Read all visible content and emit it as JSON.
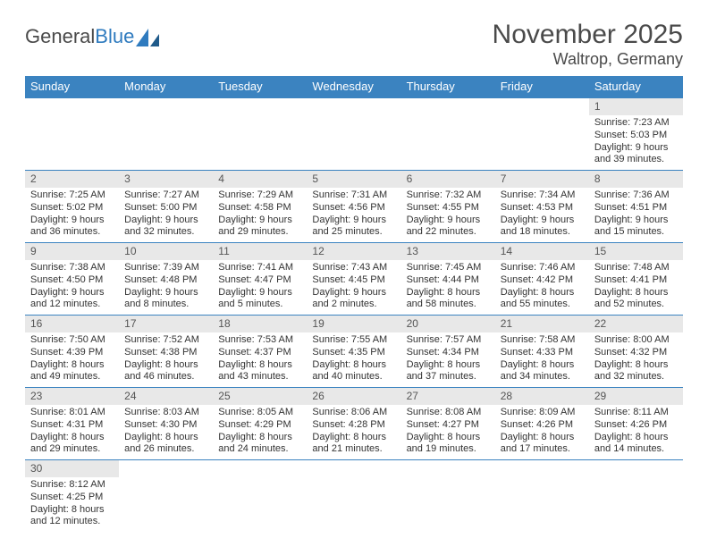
{
  "brand": {
    "part1": "General",
    "part2": "Blue"
  },
  "title": "November 2025",
  "location": "Waltrop, Germany",
  "colors": {
    "header_bg": "#3b83c0",
    "header_fg": "#ffffff",
    "daynum_bg": "#e8e8e8",
    "rule": "#3b83c0",
    "text": "#333333",
    "title_text": "#4a4a4a"
  },
  "day_labels": [
    "Sunday",
    "Monday",
    "Tuesday",
    "Wednesday",
    "Thursday",
    "Friday",
    "Saturday"
  ],
  "weeks": [
    [
      {
        "n": "",
        "sr": "",
        "ss": "",
        "dl": ""
      },
      {
        "n": "",
        "sr": "",
        "ss": "",
        "dl": ""
      },
      {
        "n": "",
        "sr": "",
        "ss": "",
        "dl": ""
      },
      {
        "n": "",
        "sr": "",
        "ss": "",
        "dl": ""
      },
      {
        "n": "",
        "sr": "",
        "ss": "",
        "dl": ""
      },
      {
        "n": "",
        "sr": "",
        "ss": "",
        "dl": ""
      },
      {
        "n": "1",
        "sr": "Sunrise: 7:23 AM",
        "ss": "Sunset: 5:03 PM",
        "dl": "Daylight: 9 hours and 39 minutes."
      }
    ],
    [
      {
        "n": "2",
        "sr": "Sunrise: 7:25 AM",
        "ss": "Sunset: 5:02 PM",
        "dl": "Daylight: 9 hours and 36 minutes."
      },
      {
        "n": "3",
        "sr": "Sunrise: 7:27 AM",
        "ss": "Sunset: 5:00 PM",
        "dl": "Daylight: 9 hours and 32 minutes."
      },
      {
        "n": "4",
        "sr": "Sunrise: 7:29 AM",
        "ss": "Sunset: 4:58 PM",
        "dl": "Daylight: 9 hours and 29 minutes."
      },
      {
        "n": "5",
        "sr": "Sunrise: 7:31 AM",
        "ss": "Sunset: 4:56 PM",
        "dl": "Daylight: 9 hours and 25 minutes."
      },
      {
        "n": "6",
        "sr": "Sunrise: 7:32 AM",
        "ss": "Sunset: 4:55 PM",
        "dl": "Daylight: 9 hours and 22 minutes."
      },
      {
        "n": "7",
        "sr": "Sunrise: 7:34 AM",
        "ss": "Sunset: 4:53 PM",
        "dl": "Daylight: 9 hours and 18 minutes."
      },
      {
        "n": "8",
        "sr": "Sunrise: 7:36 AM",
        "ss": "Sunset: 4:51 PM",
        "dl": "Daylight: 9 hours and 15 minutes."
      }
    ],
    [
      {
        "n": "9",
        "sr": "Sunrise: 7:38 AM",
        "ss": "Sunset: 4:50 PM",
        "dl": "Daylight: 9 hours and 12 minutes."
      },
      {
        "n": "10",
        "sr": "Sunrise: 7:39 AM",
        "ss": "Sunset: 4:48 PM",
        "dl": "Daylight: 9 hours and 8 minutes."
      },
      {
        "n": "11",
        "sr": "Sunrise: 7:41 AM",
        "ss": "Sunset: 4:47 PM",
        "dl": "Daylight: 9 hours and 5 minutes."
      },
      {
        "n": "12",
        "sr": "Sunrise: 7:43 AM",
        "ss": "Sunset: 4:45 PM",
        "dl": "Daylight: 9 hours and 2 minutes."
      },
      {
        "n": "13",
        "sr": "Sunrise: 7:45 AM",
        "ss": "Sunset: 4:44 PM",
        "dl": "Daylight: 8 hours and 58 minutes."
      },
      {
        "n": "14",
        "sr": "Sunrise: 7:46 AM",
        "ss": "Sunset: 4:42 PM",
        "dl": "Daylight: 8 hours and 55 minutes."
      },
      {
        "n": "15",
        "sr": "Sunrise: 7:48 AM",
        "ss": "Sunset: 4:41 PM",
        "dl": "Daylight: 8 hours and 52 minutes."
      }
    ],
    [
      {
        "n": "16",
        "sr": "Sunrise: 7:50 AM",
        "ss": "Sunset: 4:39 PM",
        "dl": "Daylight: 8 hours and 49 minutes."
      },
      {
        "n": "17",
        "sr": "Sunrise: 7:52 AM",
        "ss": "Sunset: 4:38 PM",
        "dl": "Daylight: 8 hours and 46 minutes."
      },
      {
        "n": "18",
        "sr": "Sunrise: 7:53 AM",
        "ss": "Sunset: 4:37 PM",
        "dl": "Daylight: 8 hours and 43 minutes."
      },
      {
        "n": "19",
        "sr": "Sunrise: 7:55 AM",
        "ss": "Sunset: 4:35 PM",
        "dl": "Daylight: 8 hours and 40 minutes."
      },
      {
        "n": "20",
        "sr": "Sunrise: 7:57 AM",
        "ss": "Sunset: 4:34 PM",
        "dl": "Daylight: 8 hours and 37 minutes."
      },
      {
        "n": "21",
        "sr": "Sunrise: 7:58 AM",
        "ss": "Sunset: 4:33 PM",
        "dl": "Daylight: 8 hours and 34 minutes."
      },
      {
        "n": "22",
        "sr": "Sunrise: 8:00 AM",
        "ss": "Sunset: 4:32 PM",
        "dl": "Daylight: 8 hours and 32 minutes."
      }
    ],
    [
      {
        "n": "23",
        "sr": "Sunrise: 8:01 AM",
        "ss": "Sunset: 4:31 PM",
        "dl": "Daylight: 8 hours and 29 minutes."
      },
      {
        "n": "24",
        "sr": "Sunrise: 8:03 AM",
        "ss": "Sunset: 4:30 PM",
        "dl": "Daylight: 8 hours and 26 minutes."
      },
      {
        "n": "25",
        "sr": "Sunrise: 8:05 AM",
        "ss": "Sunset: 4:29 PM",
        "dl": "Daylight: 8 hours and 24 minutes."
      },
      {
        "n": "26",
        "sr": "Sunrise: 8:06 AM",
        "ss": "Sunset: 4:28 PM",
        "dl": "Daylight: 8 hours and 21 minutes."
      },
      {
        "n": "27",
        "sr": "Sunrise: 8:08 AM",
        "ss": "Sunset: 4:27 PM",
        "dl": "Daylight: 8 hours and 19 minutes."
      },
      {
        "n": "28",
        "sr": "Sunrise: 8:09 AM",
        "ss": "Sunset: 4:26 PM",
        "dl": "Daylight: 8 hours and 17 minutes."
      },
      {
        "n": "29",
        "sr": "Sunrise: 8:11 AM",
        "ss": "Sunset: 4:26 PM",
        "dl": "Daylight: 8 hours and 14 minutes."
      }
    ],
    [
      {
        "n": "30",
        "sr": "Sunrise: 8:12 AM",
        "ss": "Sunset: 4:25 PM",
        "dl": "Daylight: 8 hours and 12 minutes."
      },
      {
        "n": "",
        "sr": "",
        "ss": "",
        "dl": ""
      },
      {
        "n": "",
        "sr": "",
        "ss": "",
        "dl": ""
      },
      {
        "n": "",
        "sr": "",
        "ss": "",
        "dl": ""
      },
      {
        "n": "",
        "sr": "",
        "ss": "",
        "dl": ""
      },
      {
        "n": "",
        "sr": "",
        "ss": "",
        "dl": ""
      },
      {
        "n": "",
        "sr": "",
        "ss": "",
        "dl": ""
      }
    ]
  ]
}
